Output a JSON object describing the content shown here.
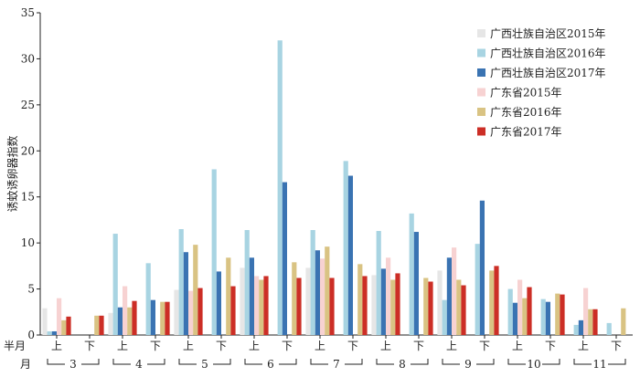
{
  "chart_data": {
    "type": "bar",
    "ylabel": "诱蚊诱卵器指数",
    "ylim": [
      0,
      35
    ],
    "y_ticks": [
      0,
      5,
      10,
      15,
      20,
      25,
      30,
      35
    ],
    "half_month_label": "半月",
    "month_label": "月",
    "categories": [
      "上",
      "下",
      "上",
      "下",
      "上",
      "下",
      "上",
      "下",
      "上",
      "下",
      "上",
      "下",
      "上",
      "下",
      "上",
      "下",
      "上",
      "下"
    ],
    "months": [
      "3",
      "4",
      "5",
      "6",
      "7",
      "8",
      "9",
      "10",
      "11"
    ],
    "legend_position": "top-right",
    "series": [
      {
        "name": "广西壮族自治区2015年",
        "color": "#e6e6e6",
        "values": [
          2.9,
          0,
          2.4,
          0,
          4.9,
          0,
          7.3,
          0,
          7.3,
          0,
          6.5,
          0,
          7.0,
          0,
          0,
          0,
          0,
          0
        ]
      },
      {
        "name": "广西壮族自治区2016年",
        "color": "#a8d4e2",
        "values": [
          0.4,
          0,
          11.0,
          7.8,
          11.5,
          18.0,
          11.4,
          32.0,
          11.4,
          18.9,
          11.3,
          13.2,
          3.8,
          9.9,
          5.0,
          3.9,
          1.1,
          1.3
        ]
      },
      {
        "name": "广西壮族自治区2017年",
        "color": "#3a73b2",
        "values": [
          0.4,
          0,
          3.0,
          3.8,
          9.0,
          6.9,
          8.4,
          16.6,
          9.2,
          17.3,
          7.2,
          11.2,
          8.4,
          14.6,
          3.5,
          3.6,
          1.6,
          0
        ]
      },
      {
        "name": "广东省2015年",
        "color": "#f7d2d2",
        "values": [
          4.0,
          0,
          5.3,
          0,
          4.8,
          0,
          6.4,
          0,
          8.3,
          0,
          8.4,
          0,
          9.5,
          0,
          6.0,
          0,
          5.1,
          0
        ]
      },
      {
        "name": "广东省2016年",
        "color": "#d9c383",
        "values": [
          1.6,
          2.1,
          3.0,
          3.6,
          9.8,
          8.4,
          6.0,
          7.9,
          9.6,
          7.7,
          6.0,
          6.2,
          6.0,
          7.0,
          4.0,
          4.5,
          2.8,
          2.9
        ]
      },
      {
        "name": "广东省2017年",
        "color": "#cc2e26",
        "values": [
          2.0,
          2.1,
          3.7,
          3.6,
          5.1,
          5.3,
          6.4,
          6.2,
          6.2,
          6.4,
          6.7,
          5.8,
          5.4,
          7.5,
          5.2,
          4.4,
          2.8,
          0
        ]
      }
    ]
  }
}
